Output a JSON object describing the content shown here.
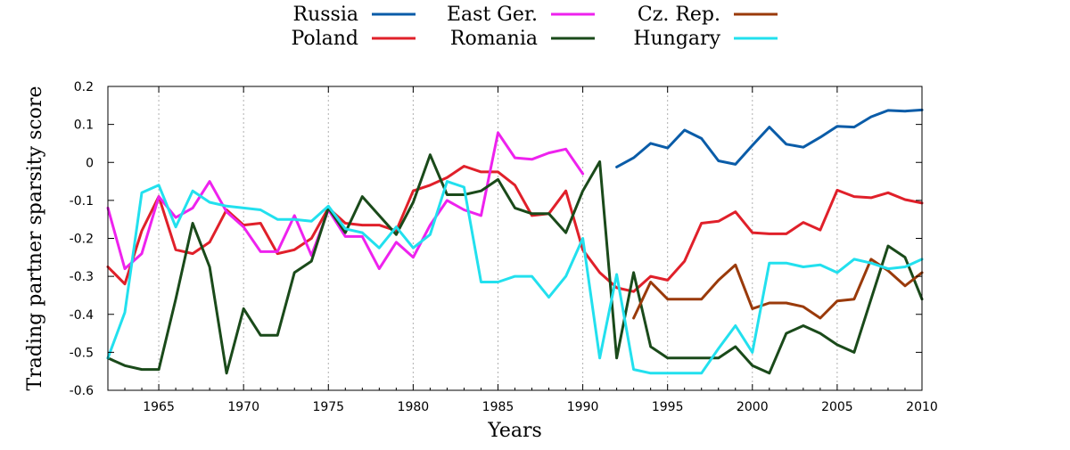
{
  "chart_data": {
    "type": "line",
    "xlabel": "Years",
    "ylabel": "Trading partner sparsity score",
    "xlim": [
      1962,
      2010
    ],
    "ylim": [
      -0.6,
      0.2
    ],
    "x_ticks": [
      1965,
      1970,
      1975,
      1980,
      1985,
      1990,
      1995,
      2000,
      2005,
      2010
    ],
    "y_ticks": [
      -0.6,
      -0.5,
      -0.4,
      -0.3,
      -0.2,
      -0.1,
      0,
      0.1,
      0.2
    ],
    "x_tick_labels": [
      "1965",
      "1970",
      "1975",
      "1980",
      "1985",
      "1990",
      "1995",
      "2000",
      "2005",
      "2010"
    ],
    "y_tick_labels": [
      "-0.6",
      "-0.5",
      "-0.4",
      "-0.3",
      "-0.2",
      "-0.1",
      "0",
      "0.1",
      "0.2"
    ],
    "grid": "vertical dotted at x ticks",
    "legend_position": "top-center",
    "series": [
      {
        "name": "Russia",
        "color": "#0a5ca8",
        "x": [
          1992,
          1993,
          1994,
          1995,
          1996,
          1997,
          1998,
          1999,
          2000,
          2001,
          2002,
          2003,
          2004,
          2005,
          2006,
          2007,
          2008,
          2009,
          2010
        ],
        "y": [
          -0.012,
          0.012,
          0.05,
          0.038,
          0.085,
          0.063,
          0.004,
          -0.005,
          0.045,
          0.093,
          0.048,
          0.04,
          0.066,
          0.095,
          0.093,
          0.12,
          0.137,
          0.135,
          0.138
        ]
      },
      {
        "name": "Poland",
        "color": "#e0202a",
        "x": [
          1962,
          1963,
          1964,
          1965,
          1966,
          1967,
          1968,
          1969,
          1970,
          1971,
          1972,
          1973,
          1974,
          1975,
          1976,
          1977,
          1978,
          1979,
          1980,
          1981,
          1982,
          1983,
          1984,
          1985,
          1986,
          1987,
          1988,
          1989,
          1990,
          1991,
          1992,
          1993,
          1994,
          1995,
          1996,
          1997,
          1998,
          1999,
          2000,
          2001,
          2002,
          2003,
          2004,
          2005,
          2006,
          2007,
          2008,
          2009,
          2010
        ],
        "y": [
          -0.275,
          -0.32,
          -0.18,
          -0.09,
          -0.23,
          -0.24,
          -0.21,
          -0.125,
          -0.165,
          -0.16,
          -0.24,
          -0.23,
          -0.2,
          -0.12,
          -0.16,
          -0.165,
          -0.165,
          -0.18,
          -0.075,
          -0.06,
          -0.04,
          -0.01,
          -0.025,
          -0.025,
          -0.06,
          -0.14,
          -0.135,
          -0.075,
          -0.23,
          -0.29,
          -0.33,
          -0.34,
          -0.3,
          -0.31,
          -0.26,
          -0.16,
          -0.155,
          -0.13,
          -0.185,
          -0.188,
          -0.188,
          -0.158,
          -0.178,
          -0.073,
          -0.09,
          -0.093,
          -0.08,
          -0.098,
          -0.107
        ]
      },
      {
        "name": "East Ger.",
        "color": "#ee22ee",
        "x": [
          1962,
          1963,
          1964,
          1965,
          1966,
          1967,
          1968,
          1969,
          1970,
          1971,
          1972,
          1973,
          1974,
          1975,
          1976,
          1977,
          1978,
          1979,
          1980,
          1981,
          1982,
          1983,
          1984,
          1985,
          1986,
          1987,
          1988,
          1989,
          1990
        ],
        "y": [
          -0.12,
          -0.28,
          -0.24,
          -0.09,
          -0.145,
          -0.12,
          -0.05,
          -0.13,
          -0.17,
          -0.235,
          -0.235,
          -0.14,
          -0.245,
          -0.125,
          -0.195,
          -0.195,
          -0.28,
          -0.21,
          -0.25,
          -0.165,
          -0.1,
          -0.125,
          -0.14,
          0.078,
          0.012,
          0.008,
          0.025,
          0.035,
          -0.03
        ]
      },
      {
        "name": "Romania",
        "color": "#1a4a1a",
        "x": [
          1962,
          1963,
          1964,
          1965,
          1966,
          1967,
          1968,
          1969,
          1970,
          1971,
          1972,
          1973,
          1974,
          1975,
          1976,
          1977,
          1978,
          1979,
          1980,
          1981,
          1982,
          1983,
          1984,
          1985,
          1986,
          1987,
          1988,
          1989,
          1990,
          1991,
          1992,
          1993,
          1994,
          1995,
          1996,
          1997,
          1998,
          1999,
          2000,
          2001,
          2002,
          2003,
          2004,
          2005,
          2006,
          2007,
          2008,
          2009,
          2010
        ],
        "y": [
          -0.515,
          -0.535,
          -0.545,
          -0.545,
          -0.36,
          -0.16,
          -0.275,
          -0.555,
          -0.385,
          -0.455,
          -0.455,
          -0.29,
          -0.26,
          -0.12,
          -0.185,
          -0.09,
          -0.14,
          -0.19,
          -0.105,
          0.02,
          -0.085,
          -0.085,
          -0.075,
          -0.045,
          -0.12,
          -0.135,
          -0.135,
          -0.185,
          -0.075,
          0.002,
          -0.515,
          -0.29,
          -0.485,
          -0.515,
          -0.515,
          -0.515,
          -0.515,
          -0.485,
          -0.535,
          -0.555,
          -0.45,
          -0.43,
          -0.45,
          -0.48,
          -0.5,
          -0.36,
          -0.22,
          -0.25,
          -0.36
        ]
      },
      {
        "name": "Cz. Rep.",
        "color": "#9a3a0a",
        "x": [
          1993,
          1994,
          1995,
          1996,
          1997,
          1998,
          1999,
          2000,
          2001,
          2002,
          2003,
          2004,
          2005,
          2006,
          2007,
          2008,
          2009,
          2010
        ],
        "y": [
          -0.41,
          -0.315,
          -0.36,
          -0.36,
          -0.36,
          -0.31,
          -0.27,
          -0.385,
          -0.37,
          -0.37,
          -0.38,
          -0.41,
          -0.365,
          -0.36,
          -0.255,
          -0.285,
          -0.325,
          -0.29
        ]
      },
      {
        "name": "Hungary",
        "color": "#22e0ee",
        "x": [
          1962,
          1963,
          1964,
          1965,
          1966,
          1967,
          1968,
          1969,
          1970,
          1971,
          1972,
          1973,
          1974,
          1975,
          1976,
          1977,
          1978,
          1979,
          1980,
          1981,
          1982,
          1983,
          1984,
          1985,
          1986,
          1987,
          1988,
          1989,
          1990,
          1991,
          1992,
          1993,
          1994,
          1995,
          1996,
          1997,
          1998,
          1999,
          2000,
          2001,
          2002,
          2003,
          2004,
          2005,
          2006,
          2007,
          2008,
          2009,
          2010
        ],
        "y": [
          -0.515,
          -0.395,
          -0.08,
          -0.06,
          -0.17,
          -0.075,
          -0.105,
          -0.115,
          -0.12,
          -0.125,
          -0.15,
          -0.15,
          -0.155,
          -0.115,
          -0.175,
          -0.185,
          -0.225,
          -0.17,
          -0.225,
          -0.19,
          -0.05,
          -0.065,
          -0.315,
          -0.315,
          -0.3,
          -0.3,
          -0.355,
          -0.3,
          -0.2,
          -0.515,
          -0.295,
          -0.545,
          -0.555,
          -0.555,
          -0.555,
          -0.555,
          -0.49,
          -0.43,
          -0.5,
          -0.265,
          -0.265,
          -0.275,
          -0.27,
          -0.29,
          -0.255,
          -0.265,
          -0.28,
          -0.275,
          -0.255
        ]
      }
    ]
  }
}
